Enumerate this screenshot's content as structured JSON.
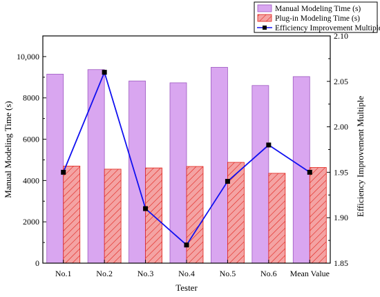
{
  "chart_data": {
    "type": "bar",
    "categories": [
      "No.1",
      "No.2",
      "No.3",
      "No.4",
      "No.5",
      "No.6",
      "Mean Value"
    ],
    "series": [
      {
        "name": "Manual Modeling Time (s)",
        "type": "bar",
        "axis": "left",
        "color": "#d9a6f0",
        "values": [
          9150,
          9370,
          8820,
          8730,
          9480,
          8600,
          9030
        ]
      },
      {
        "name": "Plug-in Modeling Time (s)",
        "type": "bar",
        "axis": "left",
        "pattern": "hatched",
        "color": "#f4a3a3",
        "edge_color": "#e0201a",
        "values": [
          4700,
          4550,
          4610,
          4680,
          4880,
          4350,
          4630
        ]
      },
      {
        "name": "Efficiency Improvement Multiple",
        "type": "line",
        "axis": "right",
        "color": "#1010f0",
        "marker": "square",
        "values": [
          1.95,
          2.06,
          1.91,
          1.87,
          1.94,
          1.98,
          1.95
        ]
      }
    ],
    "xlabel": "Tester",
    "ylabel": "Manual Modeling Time (s)",
    "ylabel_right": "Efficiency Improvement Multiple",
    "ylim": [
      0,
      11000
    ],
    "ylim_right": [
      1.85,
      2.1
    ],
    "yticks": [
      "0",
      "2000",
      "4000",
      "6000",
      "8000",
      "10,000"
    ],
    "yticks_right": [
      "1.85",
      "1.90",
      "1.95",
      "2.00",
      "2.05",
      "2.10"
    ],
    "legend": "top-right",
    "grid": false
  }
}
